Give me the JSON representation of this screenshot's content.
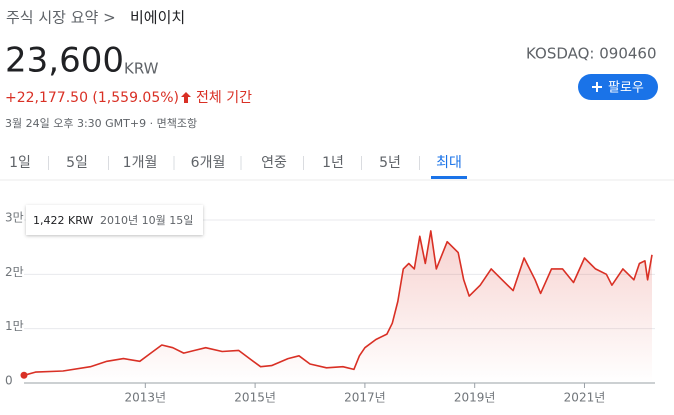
{
  "header": {
    "breadcrumb": "주식 시장 요약 >",
    "name": "비에이치"
  },
  "price": {
    "value": "23,600",
    "currency": "KRW",
    "change": "+22,177.50 (1,559.05%)",
    "period": "전체 기간",
    "timestamp": "3월 24일 오후 3:30 GMT+9 · 면책조항",
    "exchange": "KOSDAQ: 090460",
    "follow": "팔로우"
  },
  "tabs": [
    "1일",
    "5일",
    "1개월",
    "6개월",
    "연중",
    "1년",
    "5년",
    "최대"
  ],
  "tooltip": {
    "price": "1,422 KRW",
    "date": "2010년 10월 15일"
  },
  "chart_data": {
    "type": "line",
    "color": "#d93025",
    "grid": true,
    "x": [
      2010.79,
      2011.0,
      2011.5,
      2012.0,
      2012.3,
      2012.6,
      2012.9,
      2013.1,
      2013.3,
      2013.5,
      2013.7,
      2013.9,
      2014.1,
      2014.4,
      2014.7,
      2014.9,
      2015.1,
      2015.3,
      2015.6,
      2015.8,
      2016.0,
      2016.3,
      2016.6,
      2016.8,
      2016.9,
      2017.0,
      2017.2,
      2017.4,
      2017.5,
      2017.6,
      2017.7,
      2017.8,
      2017.9,
      2018.0,
      2018.1,
      2018.2,
      2018.3,
      2018.5,
      2018.7,
      2018.8,
      2018.9,
      2019.1,
      2019.3,
      2019.5,
      2019.7,
      2019.9,
      2020.1,
      2020.2,
      2020.4,
      2020.6,
      2020.8,
      2021.0,
      2021.2,
      2021.4,
      2021.5,
      2021.7,
      2021.9,
      2022.0,
      2022.1,
      2022.15,
      2022.23
    ],
    "values": [
      1422,
      2000,
      2200,
      3000,
      4000,
      4500,
      4000,
      5500,
      7000,
      6500,
      5500,
      6000,
      6500,
      5800,
      6000,
      4500,
      3000,
      3200,
      4500,
      5000,
      3500,
      2800,
      3000,
      2500,
      5000,
      6500,
      8000,
      9000,
      11000,
      15000,
      21000,
      22000,
      21000,
      27000,
      22000,
      28000,
      21000,
      26000,
      24000,
      19000,
      16000,
      18000,
      21000,
      19000,
      17000,
      23000,
      19000,
      16500,
      21000,
      21000,
      18500,
      23000,
      21000,
      20000,
      18000,
      21000,
      19000,
      22000,
      22500,
      19000,
      23600
    ],
    "xlim": [
      2010.79,
      2022.23
    ],
    "xticks": [
      {
        "value": 2013,
        "label": "2013년"
      },
      {
        "value": 2015,
        "label": "2015년"
      },
      {
        "value": 2017,
        "label": "2017년"
      },
      {
        "value": 2019,
        "label": "2019년"
      },
      {
        "value": 2021,
        "label": "2021년"
      }
    ],
    "ylim": [
      0,
      30000
    ],
    "yticks": [
      0,
      {
        "value": 10000,
        "label": "1만"
      },
      {
        "value": 20000,
        "label": "2만"
      },
      {
        "value": 30000,
        "label": "3만"
      }
    ]
  }
}
